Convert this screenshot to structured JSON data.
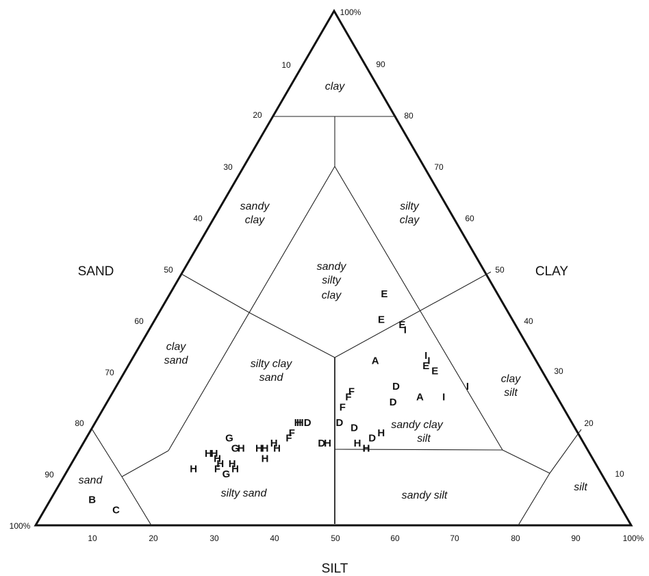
{
  "axes": {
    "sand_title": "SAND",
    "clay_title": "CLAY",
    "silt_title": "SILT",
    "left_ticks": [
      "10",
      "20",
      "30",
      "40",
      "50",
      "60",
      "70",
      "80",
      "90",
      "100%"
    ],
    "right_ticks": [
      "100%",
      "90",
      "80",
      "70",
      "60",
      "50",
      "40",
      "30",
      "20",
      "10"
    ],
    "bottom_ticks": [
      "10",
      "20",
      "30",
      "40",
      "50",
      "60",
      "70",
      "80",
      "90",
      "100%"
    ]
  },
  "regions": {
    "clay": [
      "clay"
    ],
    "sandy_clay": [
      "sandy",
      "clay"
    ],
    "silty_clay": [
      "silty",
      "clay"
    ],
    "sandy_silty_clay": [
      "sandy",
      "silty",
      "clay"
    ],
    "clay_sand": [
      "clay",
      "sand"
    ],
    "silty_clay_sand": [
      "silty clay",
      "sand"
    ],
    "sandy_clay_silt": [
      "sandy clay",
      "silt"
    ],
    "clay_silt": [
      "clay",
      "silt"
    ],
    "sand": [
      "sand"
    ],
    "silty_sand": [
      "silty sand"
    ],
    "sandy_silt": [
      "sandy silt"
    ],
    "silt": [
      "silt"
    ]
  },
  "samples": [
    {
      "label": "B",
      "clay": 5,
      "silt": 7
    },
    {
      "label": "C",
      "clay": 3,
      "silt": 12
    },
    {
      "label": "G",
      "clay": 17,
      "silt": 24
    },
    {
      "label": "G",
      "clay": 15,
      "silt": 26
    },
    {
      "label": "G",
      "clay": 10,
      "silt": 27
    },
    {
      "label": "H",
      "clay": 14,
      "silt": 22
    },
    {
      "label": "H",
      "clay": 14,
      "silt": 23
    },
    {
      "label": "H",
      "clay": 13,
      "silt": 24
    },
    {
      "label": "H",
      "clay": 12,
      "silt": 25
    },
    {
      "label": "H",
      "clay": 15,
      "silt": 27
    },
    {
      "label": "H",
      "clay": 11,
      "silt": 21
    },
    {
      "label": "H",
      "clay": 12,
      "silt": 27
    },
    {
      "label": "H",
      "clay": 11,
      "silt": 28
    },
    {
      "label": "H",
      "clay": 15,
      "silt": 30
    },
    {
      "label": "H",
      "clay": 15,
      "silt": 31
    },
    {
      "label": "H",
      "clay": 16,
      "silt": 32
    },
    {
      "label": "H",
      "clay": 13,
      "silt": 32
    },
    {
      "label": "H",
      "clay": 15,
      "silt": 33
    },
    {
      "label": "H",
      "clay": 20,
      "silt": 34
    },
    {
      "label": "H",
      "clay": 16,
      "silt": 46
    },
    {
      "label": "H",
      "clay": 15,
      "silt": 48
    },
    {
      "label": "H",
      "clay": 18,
      "silt": 49
    },
    {
      "label": "H",
      "clay": 15,
      "silt": 48
    },
    {
      "label": "H",
      "clay": 16,
      "silt": 41
    },
    {
      "label": "HD",
      "clay": 20,
      "silt": 35
    },
    {
      "label": "F",
      "clay": 11,
      "silt": 25
    },
    {
      "label": "F",
      "clay": 17,
      "silt": 34
    },
    {
      "label": "F",
      "clay": 18,
      "silt": 34
    },
    {
      "label": "F",
      "clay": 23,
      "silt": 40
    },
    {
      "label": "F",
      "clay": 25,
      "silt": 40
    },
    {
      "label": "F",
      "clay": 26,
      "silt": 40
    },
    {
      "label": "D",
      "clay": 16,
      "silt": 40
    },
    {
      "label": "D",
      "clay": 20,
      "silt": 41
    },
    {
      "label": "D",
      "clay": 19,
      "silt": 44
    },
    {
      "label": "D",
      "clay": 17,
      "silt": 48
    },
    {
      "label": "D",
      "clay": 24,
      "silt": 48
    },
    {
      "label": "D",
      "clay": 27,
      "silt": 47
    },
    {
      "label": "A",
      "clay": 32,
      "silt": 41
    },
    {
      "label": "A",
      "clay": 25,
      "silt": 52
    },
    {
      "label": "E",
      "clay": 45,
      "silt": 36
    },
    {
      "label": "E",
      "clay": 40,
      "silt": 38
    },
    {
      "label": "E",
      "clay": 39,
      "silt": 42
    },
    {
      "label": "E",
      "clay": 31,
      "silt": 50
    },
    {
      "label": "E",
      "clay": 30,
      "silt": 52
    },
    {
      "label": "I",
      "clay": 38,
      "silt": 43
    },
    {
      "label": "I",
      "clay": 33,
      "silt": 49
    },
    {
      "label": "I",
      "clay": 32,
      "silt": 50
    },
    {
      "label": "I",
      "clay": 25,
      "silt": 56
    },
    {
      "label": "I",
      "clay": 27,
      "silt": 59
    }
  ]
}
